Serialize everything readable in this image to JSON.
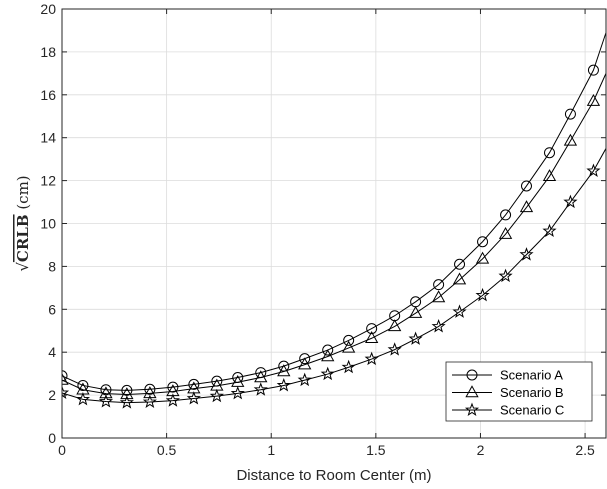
{
  "chart_data": {
    "type": "line",
    "xlabel": "Distance to Room Center (m)",
    "ylabel": {
      "prefix": "√",
      "main": "CRLB",
      "suffix": " (cm)"
    },
    "xlim": [
      0,
      2.6
    ],
    "ylim": [
      0,
      20
    ],
    "x_ticks": [
      0,
      0.5,
      1,
      1.5,
      2,
      2.5
    ],
    "x_tick_labels": [
      "0",
      "0.5",
      "1",
      "1.5",
      "2",
      "2.5"
    ],
    "y_ticks": [
      0,
      2,
      4,
      6,
      8,
      10,
      12,
      14,
      16,
      18,
      20
    ],
    "y_tick_labels": [
      "0",
      "2",
      "4",
      "6",
      "8",
      "10",
      "12",
      "14",
      "16",
      "18",
      "20"
    ],
    "grid": true,
    "legend_position": "bottom-right",
    "series": [
      {
        "name": "Scenario A",
        "marker": "circle",
        "color": "#000000",
        "x": [
          0,
          0.1,
          0.21,
          0.31,
          0.42,
          0.53,
          0.63,
          0.74,
          0.84,
          0.95,
          1.06,
          1.16,
          1.27,
          1.37,
          1.48,
          1.59,
          1.69,
          1.8,
          1.9,
          2.01,
          2.12,
          2.22,
          2.33,
          2.43,
          2.54,
          2.6
        ],
        "y": [
          2.9,
          2.45,
          2.25,
          2.22,
          2.27,
          2.37,
          2.5,
          2.65,
          2.82,
          3.05,
          3.35,
          3.7,
          4.1,
          4.55,
          5.1,
          5.7,
          6.35,
          7.15,
          8.1,
          9.15,
          10.4,
          11.75,
          13.3,
          15.1,
          17.15,
          18.9
        ]
      },
      {
        "name": "Scenario B",
        "marker": "triangle",
        "color": "#000000",
        "x": [
          0,
          0.1,
          0.21,
          0.31,
          0.42,
          0.53,
          0.63,
          0.74,
          0.84,
          0.95,
          1.06,
          1.16,
          1.27,
          1.37,
          1.48,
          1.59,
          1.69,
          1.8,
          1.9,
          2.01,
          2.12,
          2.22,
          2.33,
          2.43,
          2.54,
          2.6
        ],
        "y": [
          2.7,
          2.25,
          2.07,
          2.03,
          2.08,
          2.17,
          2.3,
          2.43,
          2.6,
          2.82,
          3.1,
          3.42,
          3.8,
          4.2,
          4.65,
          5.2,
          5.82,
          6.55,
          7.38,
          8.35,
          9.5,
          10.75,
          12.2,
          13.85,
          15.7,
          17.0
        ]
      },
      {
        "name": "Scenario C",
        "marker": "star",
        "color": "#000000",
        "x": [
          0,
          0.1,
          0.21,
          0.31,
          0.42,
          0.53,
          0.63,
          0.74,
          0.84,
          0.95,
          1.06,
          1.16,
          1.27,
          1.37,
          1.48,
          1.59,
          1.69,
          1.8,
          1.9,
          2.01,
          2.12,
          2.22,
          2.33,
          2.43,
          2.54,
          2.6
        ],
        "y": [
          2.1,
          1.8,
          1.7,
          1.65,
          1.68,
          1.74,
          1.84,
          1.95,
          2.08,
          2.25,
          2.45,
          2.7,
          2.98,
          3.3,
          3.68,
          4.12,
          4.62,
          5.2,
          5.88,
          6.65,
          7.55,
          8.55,
          9.65,
          11.0,
          12.45,
          13.5
        ]
      }
    ]
  }
}
